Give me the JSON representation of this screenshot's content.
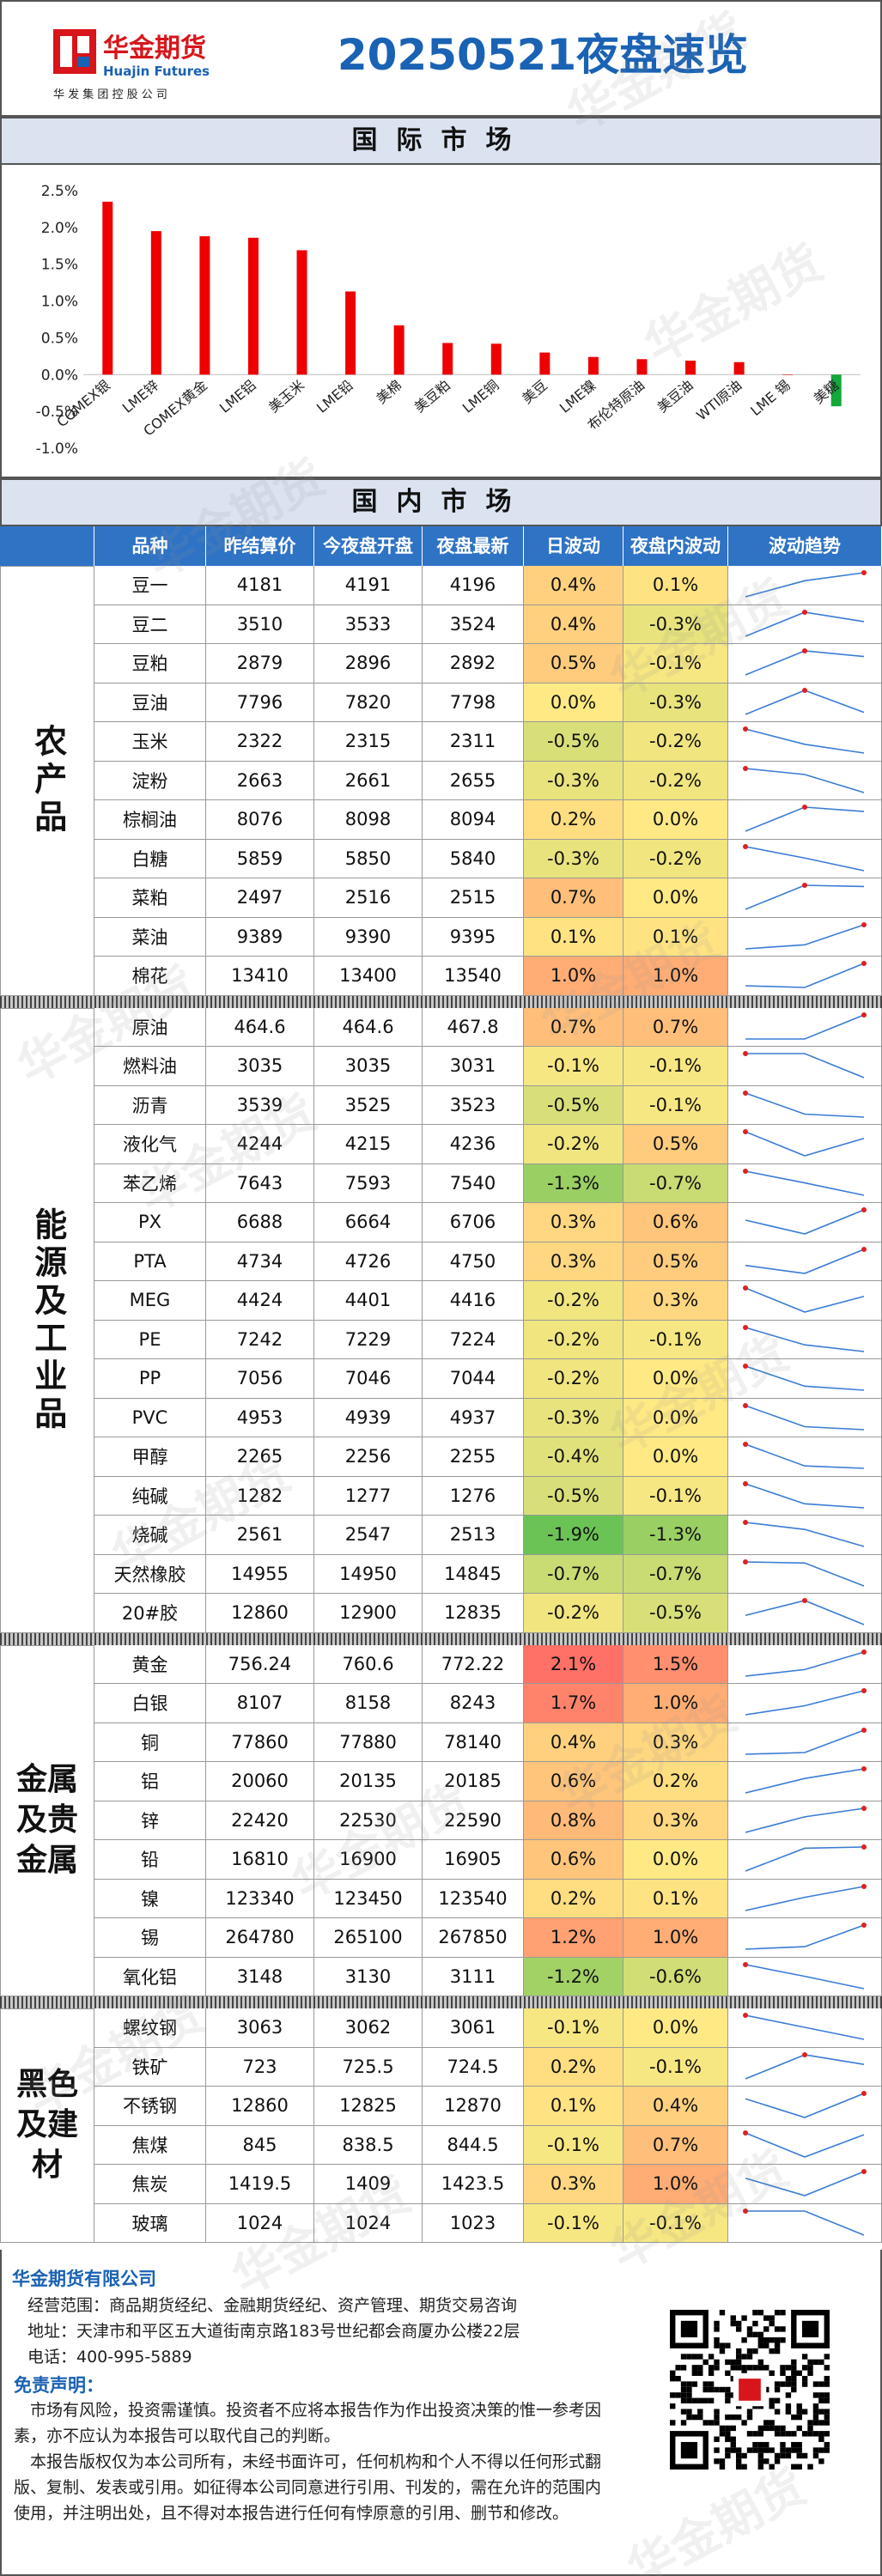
{
  "header": {
    "logo_cn": "华金期货",
    "logo_en": "Huajin Futures",
    "logo_sub": "华 发 集 团 控 股 公 司",
    "title": "20250521夜盘速览"
  },
  "intl": {
    "band": "国际市场",
    "chart_data": {
      "type": "bar",
      "categories": [
        "COMEX银",
        "LME锌",
        "COMEX黄金",
        "LME铝",
        "美玉米",
        "LME铅",
        "美棉",
        "美豆粕",
        "LME铜",
        "美豆",
        "LME镍",
        "布伦特原油",
        "美豆油",
        "WTI原油",
        "LME 锡",
        "美糖"
      ],
      "values": [
        2.35,
        1.95,
        1.88,
        1.86,
        1.69,
        1.13,
        0.67,
        0.43,
        0.42,
        0.3,
        0.24,
        0.21,
        0.19,
        0.17,
        0.0,
        -0.43
      ],
      "ylim": [
        -1.0,
        2.5
      ],
      "yticks": [
        "2.5%",
        "2.0%",
        "1.5%",
        "1.0%",
        "0.5%",
        "0.0%",
        "-0.5%",
        "-1.0%"
      ],
      "colors": {
        "pos": "#ee0000",
        "neg": "#13a83a"
      }
    }
  },
  "domestic": {
    "band": "国内市场",
    "columns": [
      "品种",
      "昨结算价",
      "今夜盘开盘",
      "夜盘最新",
      "日波动",
      "夜盘内波动",
      "波动趋势"
    ],
    "groups": [
      {
        "name": "农产品",
        "rows": [
          [
            "豆一",
            "4181",
            "4191",
            "4196",
            "0.4%",
            "0.1%"
          ],
          [
            "豆二",
            "3510",
            "3533",
            "3524",
            "0.4%",
            "-0.3%"
          ],
          [
            "豆粕",
            "2879",
            "2896",
            "2892",
            "0.5%",
            "-0.1%"
          ],
          [
            "豆油",
            "7796",
            "7820",
            "7798",
            "0.0%",
            "-0.3%"
          ],
          [
            "玉米",
            "2322",
            "2315",
            "2311",
            "-0.5%",
            "-0.2%"
          ],
          [
            "淀粉",
            "2663",
            "2661",
            "2655",
            "-0.3%",
            "-0.2%"
          ],
          [
            "棕榈油",
            "8076",
            "8098",
            "8094",
            "0.2%",
            "0.0%"
          ],
          [
            "白糖",
            "5859",
            "5850",
            "5840",
            "-0.3%",
            "-0.2%"
          ],
          [
            "菜粕",
            "2497",
            "2516",
            "2515",
            "0.7%",
            "0.0%"
          ],
          [
            "菜油",
            "9389",
            "9390",
            "9395",
            "0.1%",
            "0.1%"
          ],
          [
            "棉花",
            "13410",
            "13400",
            "13540",
            "1.0%",
            "1.0%"
          ]
        ]
      },
      {
        "name": "能源及工业品",
        "rows": [
          [
            "原油",
            "464.6",
            "464.6",
            "467.8",
            "0.7%",
            "0.7%"
          ],
          [
            "燃料油",
            "3035",
            "3035",
            "3031",
            "-0.1%",
            "-0.1%"
          ],
          [
            "沥青",
            "3539",
            "3525",
            "3523",
            "-0.5%",
            "-0.1%"
          ],
          [
            "液化气",
            "4244",
            "4215",
            "4236",
            "-0.2%",
            "0.5%"
          ],
          [
            "苯乙烯",
            "7643",
            "7593",
            "7540",
            "-1.3%",
            "-0.7%"
          ],
          [
            "PX",
            "6688",
            "6664",
            "6706",
            "0.3%",
            "0.6%"
          ],
          [
            "PTA",
            "4734",
            "4726",
            "4750",
            "0.3%",
            "0.5%"
          ],
          [
            "MEG",
            "4424",
            "4401",
            "4416",
            "-0.2%",
            "0.3%"
          ],
          [
            "PE",
            "7242",
            "7229",
            "7224",
            "-0.2%",
            "-0.1%"
          ],
          [
            "PP",
            "7056",
            "7046",
            "7044",
            "-0.2%",
            "0.0%"
          ],
          [
            "PVC",
            "4953",
            "4939",
            "4937",
            "-0.3%",
            "0.0%"
          ],
          [
            "甲醇",
            "2265",
            "2256",
            "2255",
            "-0.4%",
            "0.0%"
          ],
          [
            "纯碱",
            "1282",
            "1277",
            "1276",
            "-0.5%",
            "-0.1%"
          ],
          [
            "烧碱",
            "2561",
            "2547",
            "2513",
            "-1.9%",
            "-1.3%"
          ],
          [
            "天然橡胶",
            "14955",
            "14950",
            "14845",
            "-0.7%",
            "-0.7%"
          ],
          [
            "20#胶",
            "12860",
            "12900",
            "12835",
            "-0.2%",
            "-0.5%"
          ]
        ]
      },
      {
        "name": "金属及贵金属",
        "rows": [
          [
            "黄金",
            "756.24",
            "760.6",
            "772.22",
            "2.1%",
            "1.5%"
          ],
          [
            "白银",
            "8107",
            "8158",
            "8243",
            "1.7%",
            "1.0%"
          ],
          [
            "铜",
            "77860",
            "77880",
            "78140",
            "0.4%",
            "0.3%"
          ],
          [
            "铝",
            "20060",
            "20135",
            "20185",
            "0.6%",
            "0.2%"
          ],
          [
            "锌",
            "22420",
            "22530",
            "22590",
            "0.8%",
            "0.3%"
          ],
          [
            "铅",
            "16810",
            "16900",
            "16905",
            "0.6%",
            "0.0%"
          ],
          [
            "镍",
            "123340",
            "123450",
            "123540",
            "0.2%",
            "0.1%"
          ],
          [
            "锡",
            "264780",
            "265100",
            "267850",
            "1.2%",
            "1.0%"
          ],
          [
            "氧化铝",
            "3148",
            "3130",
            "3111",
            "-1.2%",
            "-0.6%"
          ]
        ]
      },
      {
        "name": "黑色及建材",
        "rows": [
          [
            "螺纹钢",
            "3063",
            "3062",
            "3061",
            "-0.1%",
            "0.0%"
          ],
          [
            "铁矿",
            "723",
            "725.5",
            "724.5",
            "0.2%",
            "-0.1%"
          ],
          [
            "不锈钢",
            "12860",
            "12825",
            "12870",
            "0.1%",
            "0.4%"
          ],
          [
            "焦煤",
            "845",
            "838.5",
            "844.5",
            "-0.1%",
            "0.7%"
          ],
          [
            "焦炭",
            "1419.5",
            "1409",
            "1423.5",
            "0.3%",
            "1.0%"
          ],
          [
            "玻璃",
            "1024",
            "1024",
            "1023",
            "-0.1%",
            "-0.1%"
          ]
        ]
      }
    ]
  },
  "footer": {
    "company": "华金期货有限公司",
    "scope": "经营范围：商品期货经纪、金融期货经纪、资产管理、期货交易咨询",
    "address": "地址：天津市和平区五大道街南京路183号世纪都会商厦办公楼22层",
    "phone": "电话：400-995-5889",
    "disclaimer_title": "免责声明：",
    "disclaimer1": "　市场有风险，投资需谨慎。投资者不应将本报告作为作出投资决策的惟一参考因素，亦不应认为本报告可以取代自己的判断。",
    "disclaimer2": "　本报告版权仅为本公司所有，未经书面许可，任何机构和个人不得以任何形式翻版、复制、发表或引用。如征得本公司同意进行引用、刊发的，需在允许的范围内使用，并注明出处，且不得对本报告进行任何有悖原意的引用、删节和修改。",
    "watermark": "华金期货"
  }
}
